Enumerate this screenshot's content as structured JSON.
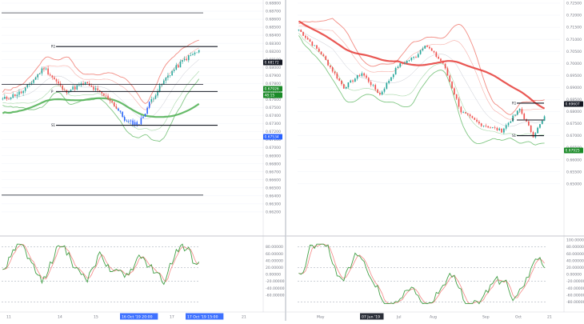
{
  "colors": {
    "bull": "#26a69a",
    "bear": "#ef5350",
    "blue_bar": "#2962ff",
    "green_fill": "#4caf50",
    "green_ma": "#43a047",
    "red_ma": "#e53935",
    "band_red": "#f28b82",
    "band_green": "#81c784",
    "level": "#131722",
    "grid": "#f0f3fa",
    "text": "#787b86",
    "badge_dark": "#131722",
    "badge_blue": "#2962ff",
    "badge_green": "#1b8b28"
  },
  "chart_data": [
    {
      "type": "candlestick",
      "panel": "left",
      "timeframe": "intraday (Oct 11–17)",
      "ylim": [
        0.6595,
        0.688
      ],
      "price_ticks": [
        "0.68800",
        "0.68700",
        "0.68600",
        "0.68500",
        "0.68400",
        "0.68300",
        "0.68200",
        "0.68100",
        "0.68000",
        "0.67900",
        "0.67800",
        "0.67700",
        "0.67600",
        "0.67500",
        "0.67400",
        "0.67300",
        "0.67200",
        "0.67100",
        "0.67000",
        "0.66900",
        "0.66800",
        "0.66700",
        "0.66600",
        "0.66500",
        "0.66400",
        "0.66300",
        "0.66200"
      ],
      "x_ticks": [
        "11",
        "14",
        "15",
        "16 Oct '19  20:00",
        "17",
        "17 Oct '19  15:00",
        "21"
      ],
      "levels": [
        {
          "label": "",
          "price": 0.6868
        },
        {
          "label": "R1",
          "price": 0.6826
        },
        {
          "label": "",
          "price": 0.6779
        },
        {
          "label": "P",
          "price": 0.677
        },
        {
          "label": "S1",
          "price": 0.6728
        },
        {
          "label": "",
          "price": 0.6641
        }
      ],
      "price_badges": [
        {
          "text": "0.68172",
          "kind": "dark"
        },
        {
          "text": "0.67926",
          "kind": "green"
        },
        {
          "text": "48:15",
          "kind": "green"
        },
        {
          "text": "0.67534",
          "kind": "blue"
        }
      ],
      "oscillator": {
        "ylim": [
          -100,
          100
        ],
        "ticks": [
          "80.00000",
          "60.00000",
          "40.00000",
          "20.00000",
          "0.00000",
          "-20.00000",
          "-40.00000",
          "-60.00000"
        ]
      }
    },
    {
      "type": "candlestick",
      "panel": "right",
      "timeframe": "daily (May–Oct)",
      "ylim": [
        0.63,
        0.725
      ],
      "price_ticks": [
        "0.72500",
        "0.72000",
        "0.71500",
        "0.71000",
        "0.70500",
        "0.70000",
        "0.69500",
        "0.69000",
        "0.68500",
        "0.68000",
        "0.67500",
        "0.67000",
        "0.66500",
        "0.66000",
        "0.65500",
        "0.65000"
      ],
      "x_ticks": [
        "May",
        "07 Jun '19",
        "Jul",
        "Aug",
        "Sep",
        "Oct",
        "21"
      ],
      "levels": [
        {
          "label": "R1",
          "price": 0.6835
        },
        {
          "label": "P",
          "price": 0.6765
        },
        {
          "label": "S1",
          "price": 0.67
        }
      ],
      "price_badges": [
        {
          "text": "0.69607",
          "kind": "dark"
        },
        {
          "text": "0.67925",
          "kind": "green"
        }
      ],
      "oscillator": {
        "ylim": [
          -100,
          100
        ],
        "ticks": [
          "100.00000",
          "80.00000",
          "60.00000",
          "40.00000",
          "20.00000",
          "0.00000",
          "-20.00000",
          "-40.00000",
          "-60.00000",
          "-80.00000"
        ]
      }
    }
  ]
}
